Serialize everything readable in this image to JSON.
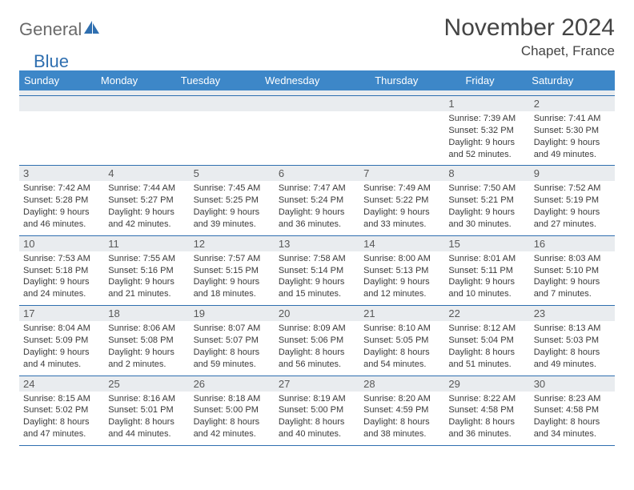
{
  "logo": {
    "part1": "General",
    "part2": "Blue"
  },
  "title": "November 2024",
  "location": "Chapet, France",
  "colors": {
    "header_bg": "#3d87c8",
    "header_text": "#ffffff",
    "daynum_bg": "#e9ecef",
    "border": "#2f6fb0",
    "logo_gray": "#6a6a6a",
    "logo_blue": "#2f6fb0"
  },
  "daysOfWeek": [
    "Sunday",
    "Monday",
    "Tuesday",
    "Wednesday",
    "Thursday",
    "Friday",
    "Saturday"
  ],
  "weeks": [
    [
      {
        "n": "",
        "sr": "",
        "ss": "",
        "dl": ""
      },
      {
        "n": "",
        "sr": "",
        "ss": "",
        "dl": ""
      },
      {
        "n": "",
        "sr": "",
        "ss": "",
        "dl": ""
      },
      {
        "n": "",
        "sr": "",
        "ss": "",
        "dl": ""
      },
      {
        "n": "",
        "sr": "",
        "ss": "",
        "dl": ""
      },
      {
        "n": "1",
        "sr": "Sunrise: 7:39 AM",
        "ss": "Sunset: 5:32 PM",
        "dl": "Daylight: 9 hours and 52 minutes."
      },
      {
        "n": "2",
        "sr": "Sunrise: 7:41 AM",
        "ss": "Sunset: 5:30 PM",
        "dl": "Daylight: 9 hours and 49 minutes."
      }
    ],
    [
      {
        "n": "3",
        "sr": "Sunrise: 7:42 AM",
        "ss": "Sunset: 5:28 PM",
        "dl": "Daylight: 9 hours and 46 minutes."
      },
      {
        "n": "4",
        "sr": "Sunrise: 7:44 AM",
        "ss": "Sunset: 5:27 PM",
        "dl": "Daylight: 9 hours and 42 minutes."
      },
      {
        "n": "5",
        "sr": "Sunrise: 7:45 AM",
        "ss": "Sunset: 5:25 PM",
        "dl": "Daylight: 9 hours and 39 minutes."
      },
      {
        "n": "6",
        "sr": "Sunrise: 7:47 AM",
        "ss": "Sunset: 5:24 PM",
        "dl": "Daylight: 9 hours and 36 minutes."
      },
      {
        "n": "7",
        "sr": "Sunrise: 7:49 AM",
        "ss": "Sunset: 5:22 PM",
        "dl": "Daylight: 9 hours and 33 minutes."
      },
      {
        "n": "8",
        "sr": "Sunrise: 7:50 AM",
        "ss": "Sunset: 5:21 PM",
        "dl": "Daylight: 9 hours and 30 minutes."
      },
      {
        "n": "9",
        "sr": "Sunrise: 7:52 AM",
        "ss": "Sunset: 5:19 PM",
        "dl": "Daylight: 9 hours and 27 minutes."
      }
    ],
    [
      {
        "n": "10",
        "sr": "Sunrise: 7:53 AM",
        "ss": "Sunset: 5:18 PM",
        "dl": "Daylight: 9 hours and 24 minutes."
      },
      {
        "n": "11",
        "sr": "Sunrise: 7:55 AM",
        "ss": "Sunset: 5:16 PM",
        "dl": "Daylight: 9 hours and 21 minutes."
      },
      {
        "n": "12",
        "sr": "Sunrise: 7:57 AM",
        "ss": "Sunset: 5:15 PM",
        "dl": "Daylight: 9 hours and 18 minutes."
      },
      {
        "n": "13",
        "sr": "Sunrise: 7:58 AM",
        "ss": "Sunset: 5:14 PM",
        "dl": "Daylight: 9 hours and 15 minutes."
      },
      {
        "n": "14",
        "sr": "Sunrise: 8:00 AM",
        "ss": "Sunset: 5:13 PM",
        "dl": "Daylight: 9 hours and 12 minutes."
      },
      {
        "n": "15",
        "sr": "Sunrise: 8:01 AM",
        "ss": "Sunset: 5:11 PM",
        "dl": "Daylight: 9 hours and 10 minutes."
      },
      {
        "n": "16",
        "sr": "Sunrise: 8:03 AM",
        "ss": "Sunset: 5:10 PM",
        "dl": "Daylight: 9 hours and 7 minutes."
      }
    ],
    [
      {
        "n": "17",
        "sr": "Sunrise: 8:04 AM",
        "ss": "Sunset: 5:09 PM",
        "dl": "Daylight: 9 hours and 4 minutes."
      },
      {
        "n": "18",
        "sr": "Sunrise: 8:06 AM",
        "ss": "Sunset: 5:08 PM",
        "dl": "Daylight: 9 hours and 2 minutes."
      },
      {
        "n": "19",
        "sr": "Sunrise: 8:07 AM",
        "ss": "Sunset: 5:07 PM",
        "dl": "Daylight: 8 hours and 59 minutes."
      },
      {
        "n": "20",
        "sr": "Sunrise: 8:09 AM",
        "ss": "Sunset: 5:06 PM",
        "dl": "Daylight: 8 hours and 56 minutes."
      },
      {
        "n": "21",
        "sr": "Sunrise: 8:10 AM",
        "ss": "Sunset: 5:05 PM",
        "dl": "Daylight: 8 hours and 54 minutes."
      },
      {
        "n": "22",
        "sr": "Sunrise: 8:12 AM",
        "ss": "Sunset: 5:04 PM",
        "dl": "Daylight: 8 hours and 51 minutes."
      },
      {
        "n": "23",
        "sr": "Sunrise: 8:13 AM",
        "ss": "Sunset: 5:03 PM",
        "dl": "Daylight: 8 hours and 49 minutes."
      }
    ],
    [
      {
        "n": "24",
        "sr": "Sunrise: 8:15 AM",
        "ss": "Sunset: 5:02 PM",
        "dl": "Daylight: 8 hours and 47 minutes."
      },
      {
        "n": "25",
        "sr": "Sunrise: 8:16 AM",
        "ss": "Sunset: 5:01 PM",
        "dl": "Daylight: 8 hours and 44 minutes."
      },
      {
        "n": "26",
        "sr": "Sunrise: 8:18 AM",
        "ss": "Sunset: 5:00 PM",
        "dl": "Daylight: 8 hours and 42 minutes."
      },
      {
        "n": "27",
        "sr": "Sunrise: 8:19 AM",
        "ss": "Sunset: 5:00 PM",
        "dl": "Daylight: 8 hours and 40 minutes."
      },
      {
        "n": "28",
        "sr": "Sunrise: 8:20 AM",
        "ss": "Sunset: 4:59 PM",
        "dl": "Daylight: 8 hours and 38 minutes."
      },
      {
        "n": "29",
        "sr": "Sunrise: 8:22 AM",
        "ss": "Sunset: 4:58 PM",
        "dl": "Daylight: 8 hours and 36 minutes."
      },
      {
        "n": "30",
        "sr": "Sunrise: 8:23 AM",
        "ss": "Sunset: 4:58 PM",
        "dl": "Daylight: 8 hours and 34 minutes."
      }
    ]
  ]
}
